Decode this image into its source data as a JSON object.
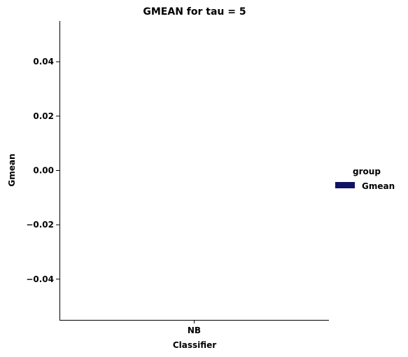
{
  "chart_data": {
    "type": "bar",
    "title": "GMEAN for tau = 5",
    "xlabel": "Classifier",
    "ylabel": "Gmean",
    "categories": [
      "NB"
    ],
    "series": [
      {
        "name": "Gmean",
        "values": [
          0
        ],
        "color": "#111166"
      }
    ],
    "yticks": [
      0.04,
      0.02,
      0.0,
      -0.02,
      -0.04
    ],
    "ytick_labels": [
      "0.04",
      "0.02",
      "0.00",
      "−0.02",
      "−0.04"
    ],
    "ylim": [
      -0.055,
      0.055
    ],
    "grid": false,
    "legend": {
      "title": "group",
      "placement": "right"
    }
  }
}
